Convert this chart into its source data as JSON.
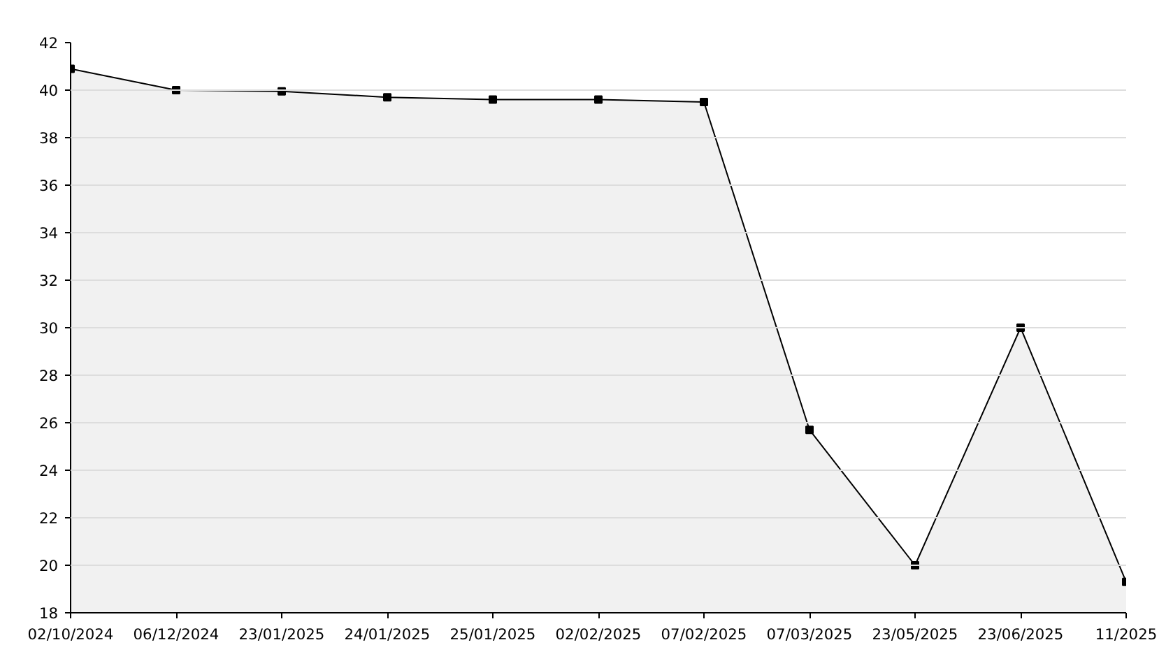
{
  "chart_data": {
    "type": "area",
    "categories": [
      "02/10/2024",
      "06/12/2024",
      "23/01/2025",
      "24/01/2025",
      "25/01/2025",
      "02/02/2025",
      "07/02/2025",
      "07/03/2025",
      "23/05/2025",
      "23/06/2025",
      "11/2025"
    ],
    "series": [
      {
        "color": "#000000",
        "values": [
          40.9,
          40.0,
          39.95,
          39.7,
          39.6,
          39.6,
          39.5,
          25.7,
          20.0,
          30.0,
          19.3
        ]
      }
    ],
    "ylim": [
      18,
      42
    ],
    "yticks": [
      18,
      20,
      22,
      24,
      26,
      28,
      30,
      32,
      34,
      36,
      38,
      40,
      42
    ],
    "grid": "y",
    "marker": "square",
    "line_style": "solid"
  }
}
